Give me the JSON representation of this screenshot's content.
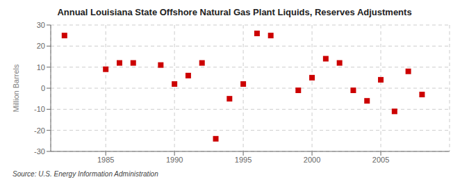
{
  "chart_data": {
    "type": "scatter",
    "title": "Annual Louisiana State Offshore Natural Gas Plant Liquids, Reserves Adjustments",
    "ylabel": "Million Barrels",
    "source": "Source: U.S. Energy Information Administration",
    "x": [
      1982,
      1985,
      1986,
      1987,
      1989,
      1990,
      1991,
      1992,
      1993,
      1994,
      1995,
      1996,
      1997,
      1999,
      2000,
      2001,
      2002,
      2003,
      2004,
      2005,
      2006,
      2007,
      2008
    ],
    "values": [
      25,
      9,
      12,
      12,
      11,
      2,
      6,
      12,
      -24,
      -5,
      2,
      26,
      25,
      -1,
      5,
      14,
      12,
      -1,
      -6,
      4,
      -11,
      8,
      -3
    ],
    "color": "#cc0000",
    "marker": "square",
    "xlim": [
      1981,
      2010
    ],
    "ylim": [
      -30,
      30
    ],
    "xticks": [
      1985,
      1990,
      1995,
      2000,
      2005
    ],
    "yticks": [
      -30,
      -20,
      -10,
      0,
      10,
      20,
      30
    ],
    "grid": true
  }
}
